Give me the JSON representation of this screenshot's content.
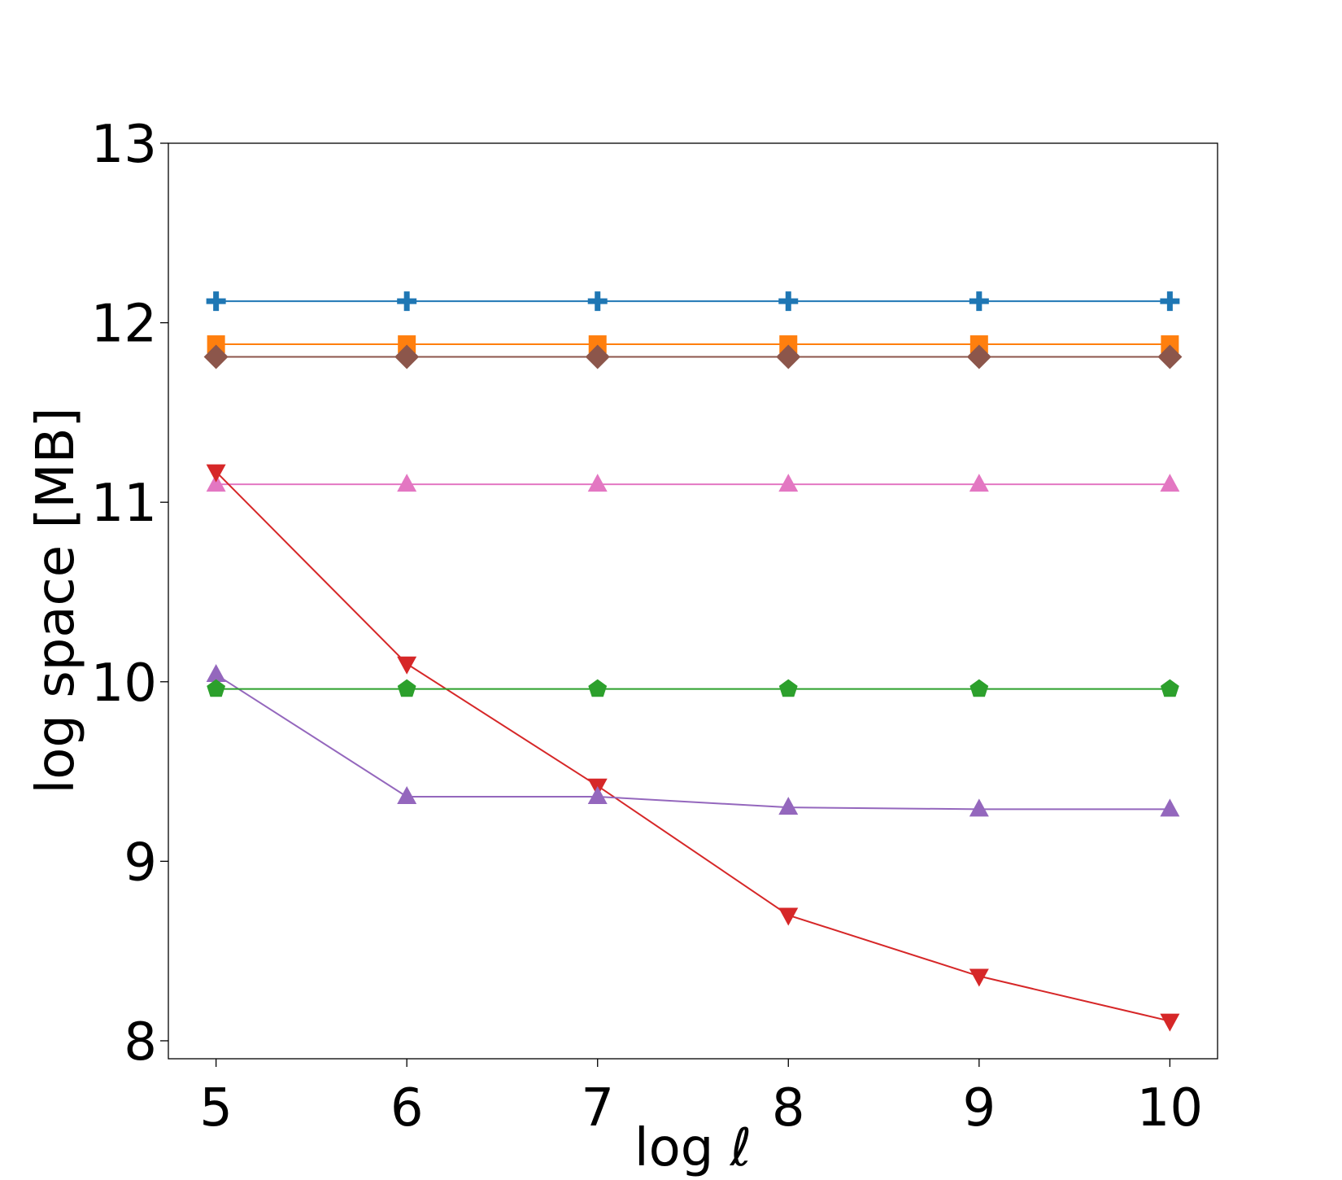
{
  "chart_data": {
    "type": "line",
    "title": "",
    "xlabel": "log ℓ",
    "ylabel": "log space [MB]",
    "x": [
      5,
      6,
      7,
      8,
      9,
      10
    ],
    "xticks": [
      "5",
      "6",
      "7",
      "8",
      "9",
      "10"
    ],
    "yticks": [
      "8",
      "9",
      "10",
      "11",
      "12",
      "13"
    ],
    "xlim": [
      4.75,
      10.25
    ],
    "ylim": [
      7.9,
      13
    ],
    "grid": false,
    "legend": "none",
    "series": [
      {
        "color": "#1f77b4",
        "marker": "plus",
        "values": [
          12.12,
          12.12,
          12.12,
          12.12,
          12.12,
          12.12
        ]
      },
      {
        "color": "#ff7f0e",
        "marker": "square",
        "values": [
          11.88,
          11.88,
          11.88,
          11.88,
          11.88,
          11.88
        ]
      },
      {
        "color": "#8c564b",
        "marker": "diamond",
        "values": [
          11.81,
          11.81,
          11.81,
          11.81,
          11.81,
          11.81
        ]
      },
      {
        "color": "#e377c2",
        "marker": "triangle-up",
        "values": [
          11.1,
          11.1,
          11.1,
          11.1,
          11.1,
          11.1
        ]
      },
      {
        "color": "#d62728",
        "marker": "triangle-down",
        "values": [
          11.17,
          10.1,
          9.42,
          8.7,
          8.36,
          8.11
        ]
      },
      {
        "color": "#9467bd",
        "marker": "triangle-up",
        "values": [
          10.04,
          9.36,
          9.36,
          9.3,
          9.29,
          9.29
        ]
      },
      {
        "color": "#2ca02c",
        "marker": "pentagon",
        "values": [
          9.96,
          9.96,
          9.96,
          9.96,
          9.96,
          9.96
        ]
      }
    ]
  }
}
